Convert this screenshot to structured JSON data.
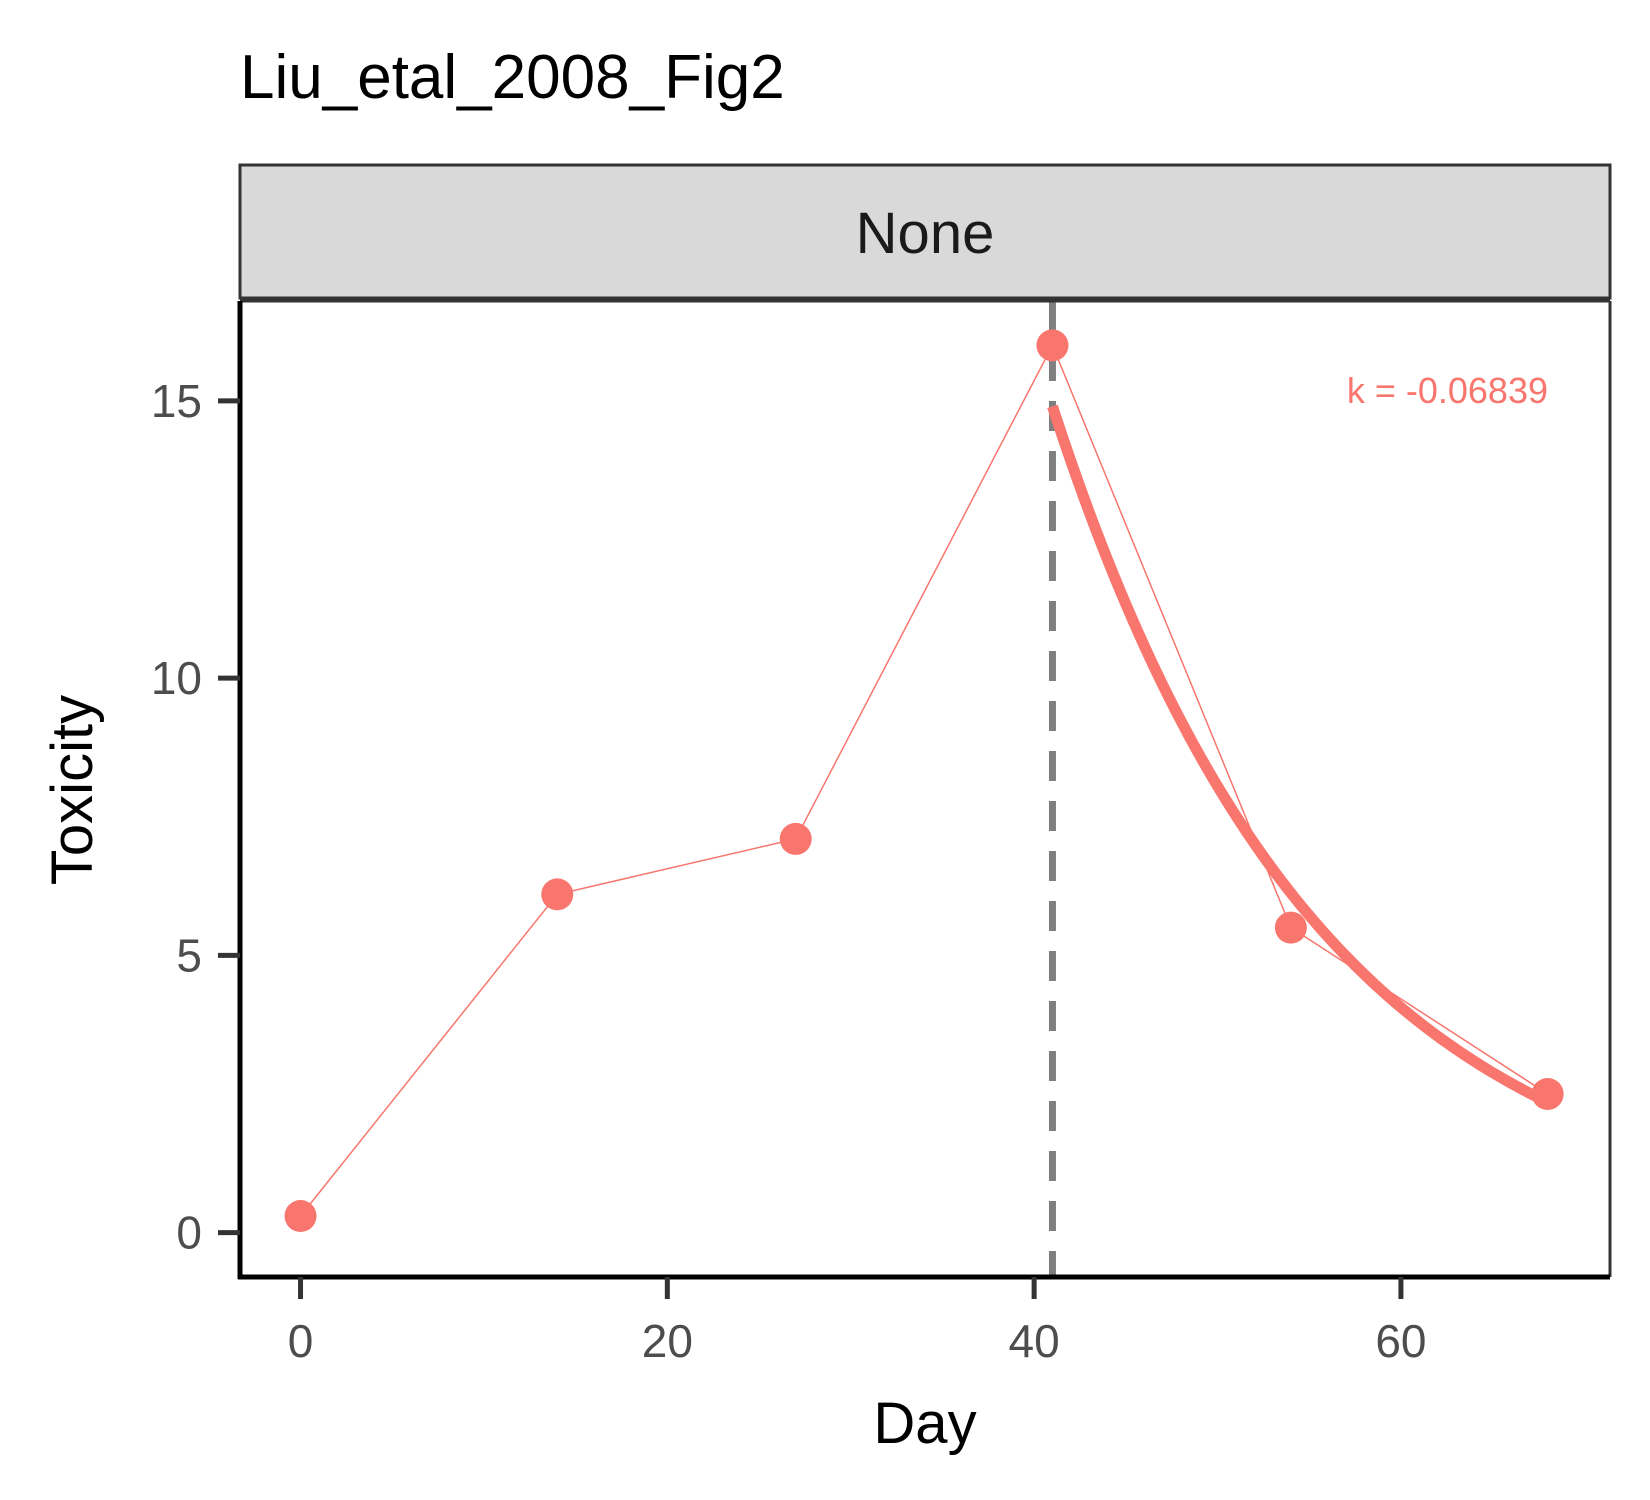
{
  "chart_data": {
    "type": "line",
    "title": "Liu_etal_2008_Fig2",
    "facet": "None",
    "xlabel": "Day",
    "ylabel": "Toxicity",
    "xlim": [
      -3.3,
      71.4
    ],
    "ylim": [
      -0.8,
      16.8
    ],
    "x_ticks": [
      0,
      20,
      40,
      60
    ],
    "y_ticks": [
      0,
      5,
      10,
      15
    ],
    "grid": false,
    "color": "#F8766D",
    "series": [
      {
        "x": [
          0,
          14,
          27,
          41,
          54,
          68
        ],
        "y": [
          0.3,
          6.1,
          7.1,
          16.0,
          5.5,
          2.5
        ]
      }
    ],
    "fit": {
      "x0": 41,
      "y0": 14.9,
      "k": -0.06839,
      "x_end": 68
    },
    "vline": {
      "x": 41,
      "color": "#7f7f7f"
    },
    "annotation": "k = -0.06839"
  }
}
